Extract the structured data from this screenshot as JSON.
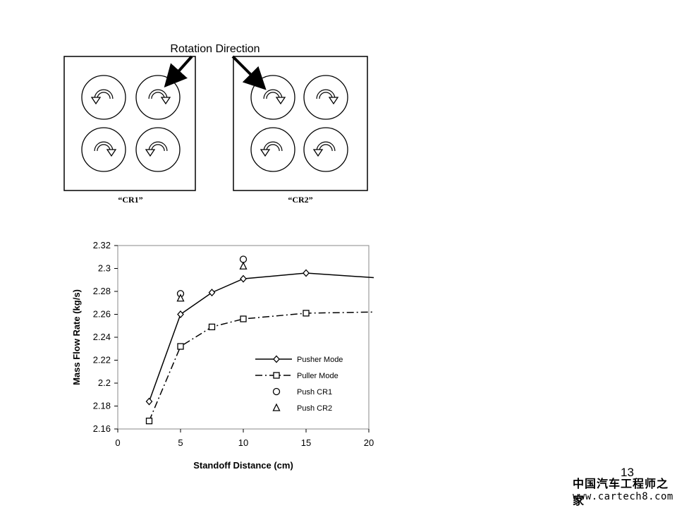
{
  "diagram": {
    "annotation": "Rotation Direction",
    "panels": [
      {
        "label": "“CR1”",
        "rotors": [
          "ccw",
          "cw",
          "cw",
          "ccw"
        ]
      },
      {
        "label": "“CR2”",
        "rotors": [
          "cw",
          "cw",
          "ccw",
          "ccw"
        ]
      }
    ]
  },
  "chart_data": {
    "type": "line",
    "title": "",
    "xlabel": "Standoff Distance (cm)",
    "ylabel": "Mass Flow Rate (kg/s)",
    "xlim": [
      0,
      20
    ],
    "ylim": [
      2.16,
      2.32
    ],
    "xticks": [
      0,
      5,
      10,
      15,
      20
    ],
    "yticks": [
      2.16,
      2.18,
      2.2,
      2.22,
      2.24,
      2.26,
      2.28,
      2.3,
      2.32
    ],
    "grid": false,
    "legend_position": "lower-right",
    "series": [
      {
        "name": "Pusher Mode",
        "line": "solid",
        "marker": "diamond",
        "x": [
          2.5,
          5,
          7.5,
          10,
          15,
          20.5
        ],
        "y": [
          2.184,
          2.26,
          2.279,
          2.291,
          2.296,
          2.292
        ],
        "markers": [
          true,
          true,
          true,
          true,
          true,
          false
        ]
      },
      {
        "name": "Puller Mode",
        "line": "dashdot",
        "marker": "square",
        "x": [
          2.5,
          5,
          7.5,
          10,
          15,
          20.5
        ],
        "y": [
          2.167,
          2.232,
          2.249,
          2.256,
          2.261,
          2.262
        ],
        "markers": [
          true,
          true,
          true,
          true,
          true,
          false
        ]
      },
      {
        "name": "Push CR1",
        "line": "none",
        "marker": "circle",
        "x": [
          5,
          10
        ],
        "y": [
          2.278,
          2.308
        ]
      },
      {
        "name": "Push CR2",
        "line": "none",
        "marker": "triangle",
        "x": [
          5,
          10
        ],
        "y": [
          2.274,
          2.302
        ]
      }
    ]
  },
  "footer": {
    "page_number": "13",
    "watermark_cn": "中国汽车工程师之家",
    "watermark_url": "www.cartech8.com"
  }
}
